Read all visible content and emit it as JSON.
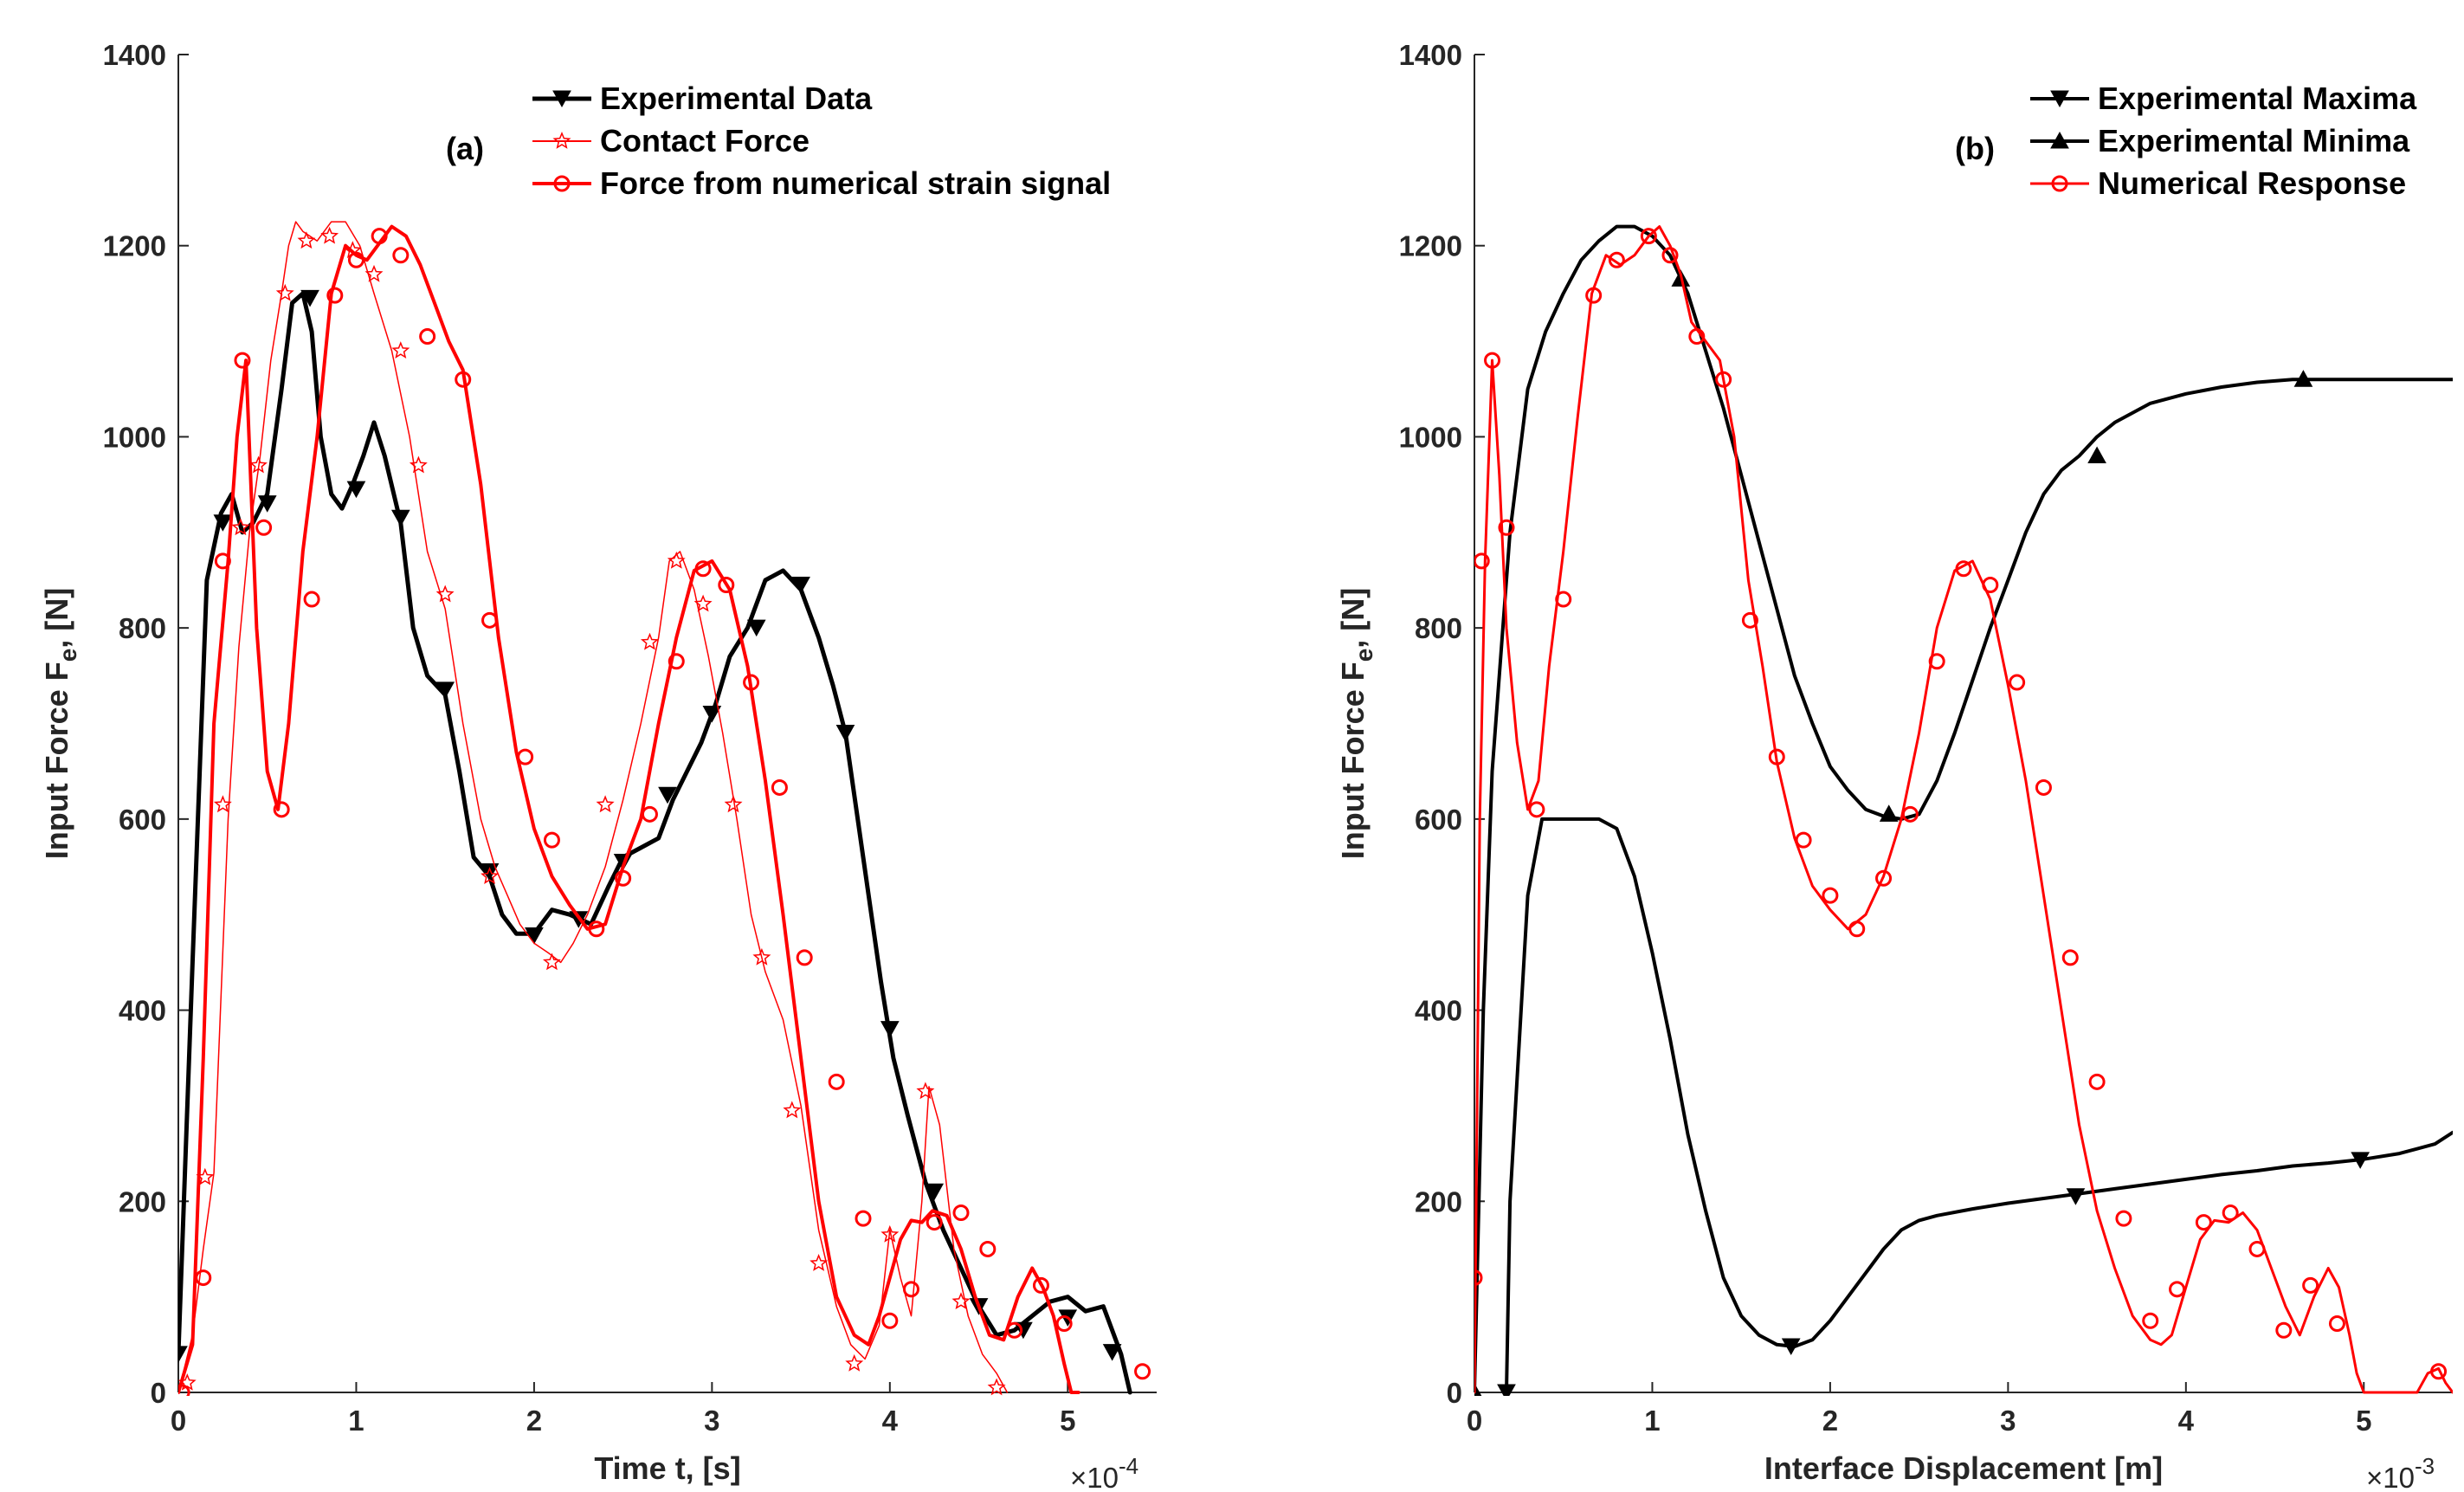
{
  "chart_data": [
    {
      "type": "line",
      "panel_label": "(a)",
      "xlabel": "Time t, [s]",
      "ylabel": "Input Force F",
      "ylabel_sub": "e",
      "ylabel_suffix": ", [N]",
      "x_multiplier": "×10",
      "x_multiplier_exp": "-4",
      "xlim": [
        0,
        5.5
      ],
      "ylim": [
        0,
        1400
      ],
      "xticks": [
        0,
        1,
        2,
        3,
        4,
        5
      ],
      "yticks": [
        0,
        200,
        400,
        600,
        800,
        1000,
        1200,
        1400
      ],
      "grid": false,
      "legend_position": "top-right",
      "series": [
        {
          "name": "Experimental Data",
          "color": "#000000",
          "marker": "triangle-down",
          "line_width": 5,
          "x": [
            0,
            0.08,
            0.16,
            0.24,
            0.3,
            0.36,
            0.42,
            0.5,
            0.58,
            0.64,
            0.7,
            0.75,
            0.8,
            0.86,
            0.92,
            0.98,
            1.04,
            1.1,
            1.16,
            1.25,
            1.32,
            1.4,
            1.5,
            1.58,
            1.66,
            1.75,
            1.82,
            1.9,
            2.0,
            2.1,
            2.2,
            2.32,
            2.42,
            2.5,
            2.6,
            2.7,
            2.78,
            2.86,
            2.94,
            3.02,
            3.1,
            3.2,
            3.3,
            3.4,
            3.5,
            3.6,
            3.68,
            3.75,
            3.85,
            3.95,
            4.02,
            4.1,
            4.2,
            4.3,
            4.4,
            4.5,
            4.6,
            4.7,
            4.8,
            4.9,
            5.0,
            5.1,
            5.2,
            5.3,
            5.35
          ],
          "y": [
            40,
            450,
            850,
            920,
            940,
            900,
            910,
            940,
            1050,
            1140,
            1150,
            1110,
            1000,
            940,
            925,
            950,
            980,
            1015,
            980,
            910,
            800,
            750,
            730,
            650,
            560,
            540,
            500,
            480,
            480,
            505,
            500,
            490,
            530,
            560,
            570,
            580,
            620,
            650,
            680,
            720,
            770,
            800,
            850,
            860,
            840,
            790,
            740,
            690,
            560,
            430,
            350,
            290,
            220,
            170,
            130,
            90,
            60,
            65,
            80,
            95,
            100,
            85,
            90,
            40,
            0
          ],
          "markers_x": [
            0,
            0.25,
            0.5,
            0.74,
            1.0,
            1.25,
            1.5,
            1.75,
            2.0,
            2.25,
            2.5,
            2.75,
            3.0,
            3.25,
            3.5,
            3.75,
            4.0,
            4.25,
            4.5,
            4.75,
            5.0,
            5.25
          ],
          "markers_y": [
            40,
            910,
            930,
            1145,
            945,
            915,
            735,
            545,
            478,
            495,
            555,
            625,
            710,
            800,
            845,
            690,
            380,
            210,
            90,
            65,
            78,
            42
          ]
        },
        {
          "name": "Contact Force",
          "color": "#ff0000",
          "marker": "star",
          "line_width": 1.5,
          "x": [
            0,
            0.08,
            0.14,
            0.2,
            0.28,
            0.34,
            0.4,
            0.46,
            0.52,
            0.58,
            0.62,
            0.66,
            0.7,
            0.78,
            0.86,
            0.94,
            1.02,
            1.1,
            1.2,
            1.3,
            1.4,
            1.5,
            1.6,
            1.7,
            1.78,
            1.85,
            1.92,
            2.0,
            2.08,
            2.15,
            2.22,
            2.3,
            2.4,
            2.5,
            2.6,
            2.7,
            2.76,
            2.82,
            2.9,
            2.98,
            3.06,
            3.14,
            3.22,
            3.3,
            3.4,
            3.5,
            3.6,
            3.7,
            3.78,
            3.86,
            3.94,
            4.0,
            4.06,
            4.12,
            4.18,
            4.22,
            4.28,
            4.36,
            4.44,
            4.52,
            4.6,
            4.66
          ],
          "y": [
            0,
            60,
            150,
            230,
            600,
            780,
            900,
            980,
            1080,
            1150,
            1200,
            1225,
            1215,
            1205,
            1225,
            1225,
            1200,
            1150,
            1090,
            1000,
            880,
            820,
            700,
            600,
            550,
            520,
            490,
            470,
            460,
            450,
            470,
            500,
            550,
            620,
            700,
            790,
            870,
            880,
            840,
            770,
            690,
            600,
            500,
            440,
            390,
            300,
            170,
            90,
            50,
            35,
            70,
            170,
            120,
            80,
            200,
            320,
            280,
            150,
            80,
            40,
            20,
            0
          ],
          "markers_x": [
            0.05,
            0.15,
            0.25,
            0.35,
            0.45,
            0.6,
            0.72,
            0.85,
            0.98,
            1.1,
            1.25,
            1.35,
            1.5,
            1.75,
            2.1,
            2.4,
            2.65,
            2.8,
            2.95,
            3.12,
            3.28,
            3.45,
            3.6,
            3.8,
            4.0,
            4.2,
            4.4,
            4.6
          ],
          "markers_y": [
            10,
            225,
            615,
            905,
            970,
            1150,
            1205,
            1210,
            1195,
            1170,
            1090,
            970,
            835,
            540,
            450,
            615,
            785,
            870,
            825,
            615,
            455,
            295,
            135,
            30,
            165,
            315,
            95,
            5
          ]
        },
        {
          "name": "Force from numerical strain signal",
          "color": "#ff0000",
          "marker": "circle",
          "line_width": 4,
          "x": [
            0,
            0.08,
            0.14,
            0.2,
            0.28,
            0.33,
            0.38,
            0.44,
            0.5,
            0.56,
            0.62,
            0.7,
            0.78,
            0.86,
            0.94,
            1.0,
            1.06,
            1.12,
            1.2,
            1.28,
            1.36,
            1.44,
            1.52,
            1.6,
            1.7,
            1.8,
            1.9,
            2.0,
            2.1,
            2.2,
            2.3,
            2.4,
            2.5,
            2.6,
            2.7,
            2.8,
            2.9,
            3.0,
            3.1,
            3.2,
            3.3,
            3.4,
            3.5,
            3.6,
            3.7,
            3.8,
            3.88,
            3.94,
            4.0,
            4.06,
            4.12,
            4.18,
            4.24,
            4.32,
            4.4,
            4.48,
            4.56,
            4.64,
            4.72,
            4.8,
            4.86,
            4.92,
            4.98,
            5.02,
            5.06
          ],
          "y": [
            0,
            50,
            350,
            700,
            870,
            1000,
            1080,
            800,
            650,
            610,
            700,
            880,
            1000,
            1150,
            1200,
            1190,
            1185,
            1200,
            1220,
            1210,
            1180,
            1140,
            1100,
            1070,
            950,
            790,
            670,
            590,
            540,
            510,
            485,
            490,
            550,
            600,
            700,
            790,
            860,
            870,
            840,
            760,
            640,
            500,
            350,
            200,
            100,
            60,
            50,
            80,
            120,
            160,
            180,
            178,
            190,
            185,
            150,
            100,
            60,
            55,
            100,
            130,
            110,
            80,
            30,
            0,
            0
          ],
          "markers_x": [
            0.02,
            0.14,
            0.25,
            0.36,
            0.48,
            0.58,
            0.75,
            0.88,
            1.0,
            1.13,
            1.25,
            1.4,
            1.6,
            1.75,
            1.95,
            2.1,
            2.35,
            2.5,
            2.65,
            2.8,
            2.95,
            3.08,
            3.22,
            3.38,
            3.52,
            3.7,
            3.85,
            4.0,
            4.12,
            4.25,
            4.4,
            4.55,
            4.7,
            4.85,
            4.98,
            5.42
          ],
          "markers_y": [
            0,
            120,
            870,
            1080,
            905,
            610,
            830,
            1148,
            1185,
            1210,
            1190,
            1105,
            1060,
            808,
            665,
            578,
            485,
            538,
            605,
            765,
            862,
            845,
            743,
            633,
            455,
            325,
            182,
            75,
            108,
            178,
            188,
            150,
            65,
            112,
            72,
            22
          ]
        }
      ]
    },
    {
      "type": "line",
      "panel_label": "(b)",
      "xlabel": "Interface Displacement [m]",
      "ylabel": "Input Force F",
      "ylabel_sub": "e",
      "ylabel_suffix": ", [N]",
      "x_multiplier": "×10",
      "x_multiplier_exp": "-3",
      "xlim": [
        0,
        5.5
      ],
      "ylim": [
        0,
        1400
      ],
      "xticks": [
        0,
        1,
        2,
        3,
        4,
        5
      ],
      "yticks": [
        0,
        200,
        400,
        600,
        800,
        1000,
        1200,
        1400
      ],
      "grid": false,
      "legend_position": "top-right",
      "series": [
        {
          "name": "Experimental Maxima",
          "color": "#000000",
          "marker": "triangle-down",
          "line_width": 4,
          "x": [
            0.18,
            0.2,
            0.3,
            0.38,
            0.45,
            0.6,
            0.7,
            0.8,
            0.9,
            1.0,
            1.1,
            1.2,
            1.3,
            1.4,
            1.5,
            1.6,
            1.7,
            1.8,
            1.9,
            2.0,
            2.1,
            2.2,
            2.3,
            2.4,
            2.5,
            2.6,
            2.8,
            3.0,
            3.2,
            3.4,
            3.6,
            3.8,
            4.0,
            4.2,
            4.4,
            4.6,
            4.8,
            5.0,
            5.2,
            5.4,
            5.5
          ],
          "y": [
            0,
            200,
            520,
            600,
            600,
            600,
            600,
            590,
            540,
            460,
            370,
            270,
            190,
            120,
            80,
            60,
            50,
            48,
            55,
            75,
            100,
            125,
            150,
            170,
            180,
            185,
            192,
            198,
            203,
            208,
            213,
            218,
            223,
            228,
            232,
            237,
            240,
            244,
            250,
            260,
            272
          ],
          "markers_x": [
            0.18,
            1.78,
            3.38,
            4.98
          ],
          "markers_y": [
            0,
            48,
            205,
            243
          ]
        },
        {
          "name": "Experimental Minima",
          "color": "#000000",
          "marker": "triangle-up",
          "line_width": 4,
          "x": [
            0,
            0.05,
            0.1,
            0.2,
            0.3,
            0.4,
            0.5,
            0.6,
            0.7,
            0.8,
            0.9,
            1.0,
            1.1,
            1.2,
            1.3,
            1.4,
            1.5,
            1.6,
            1.7,
            1.8,
            1.9,
            2.0,
            2.1,
            2.2,
            2.3,
            2.4,
            2.5,
            2.6,
            2.7,
            2.8,
            2.9,
            3.0,
            3.1,
            3.2,
            3.3,
            3.4,
            3.5,
            3.6,
            3.8,
            4.0,
            4.2,
            4.4,
            4.6,
            4.8,
            5.0,
            5.2,
            5.5
          ],
          "y": [
            0,
            400,
            650,
            900,
            1050,
            1110,
            1150,
            1185,
            1205,
            1220,
            1220,
            1210,
            1190,
            1150,
            1090,
            1030,
            960,
            890,
            820,
            750,
            700,
            655,
            630,
            610,
            603,
            600,
            605,
            640,
            690,
            745,
            800,
            850,
            900,
            940,
            965,
            980,
            1000,
            1015,
            1035,
            1045,
            1052,
            1057,
            1060,
            1060,
            1060,
            1060,
            1060
          ],
          "markers_x": [
            0,
            1.16,
            2.33,
            3.5,
            4.66
          ],
          "markers_y": [
            0,
            1165,
            605,
            980,
            1060
          ]
        },
        {
          "name": "Numerical Response",
          "color": "#ff0000",
          "marker": "circle",
          "line_width": 3,
          "x": [
            0,
            0.03,
            0.06,
            0.1,
            0.14,
            0.18,
            0.24,
            0.3,
            0.36,
            0.42,
            0.5,
            0.58,
            0.66,
            0.74,
            0.82,
            0.9,
            0.98,
            1.04,
            1.1,
            1.16,
            1.22,
            1.3,
            1.38,
            1.46,
            1.54,
            1.62,
            1.7,
            1.8,
            1.9,
            2.0,
            2.1,
            2.2,
            2.3,
            2.4,
            2.5,
            2.6,
            2.7,
            2.8,
            2.9,
            3.0,
            3.1,
            3.2,
            3.3,
            3.4,
            3.5,
            3.6,
            3.7,
            3.8,
            3.86,
            3.92,
            4.0,
            4.08,
            4.16,
            4.24,
            4.32,
            4.4,
            4.48,
            4.56,
            4.64,
            4.72,
            4.8,
            4.86,
            4.92,
            4.96,
            5.0,
            5.3,
            5.36,
            5.42,
            5.46,
            5.5
          ],
          "y": [
            0,
            600,
            870,
            1080,
            960,
            800,
            680,
            610,
            640,
            760,
            880,
            1020,
            1150,
            1190,
            1180,
            1190,
            1210,
            1220,
            1200,
            1170,
            1120,
            1100,
            1080,
            1000,
            850,
            760,
            660,
            580,
            530,
            505,
            485,
            500,
            540,
            600,
            690,
            800,
            860,
            870,
            830,
            740,
            640,
            520,
            400,
            280,
            190,
            130,
            80,
            55,
            50,
            60,
            110,
            160,
            180,
            178,
            188,
            170,
            130,
            90,
            60,
            100,
            130,
            110,
            60,
            20,
            0,
            0,
            20,
            25,
            10,
            0
          ],
          "markers_x": [
            0,
            0.04,
            0.1,
            0.18,
            0.35,
            0.5,
            0.67,
            0.8,
            0.98,
            1.1,
            1.25,
            1.4,
            1.55,
            1.7,
            1.85,
            2.0,
            2.15,
            2.3,
            2.45,
            2.6,
            2.75,
            2.9,
            3.05,
            3.2,
            3.35,
            3.5,
            3.65,
            3.8,
            3.95,
            4.1,
            4.25,
            4.4,
            4.55,
            4.7,
            4.85,
            5.42
          ],
          "markers_y": [
            120,
            870,
            1080,
            905,
            610,
            830,
            1148,
            1185,
            1210,
            1190,
            1105,
            1060,
            808,
            665,
            578,
            520,
            485,
            538,
            605,
            765,
            862,
            845,
            743,
            633,
            455,
            325,
            182,
            75,
            108,
            178,
            188,
            150,
            65,
            112,
            72,
            22
          ]
        }
      ]
    }
  ]
}
